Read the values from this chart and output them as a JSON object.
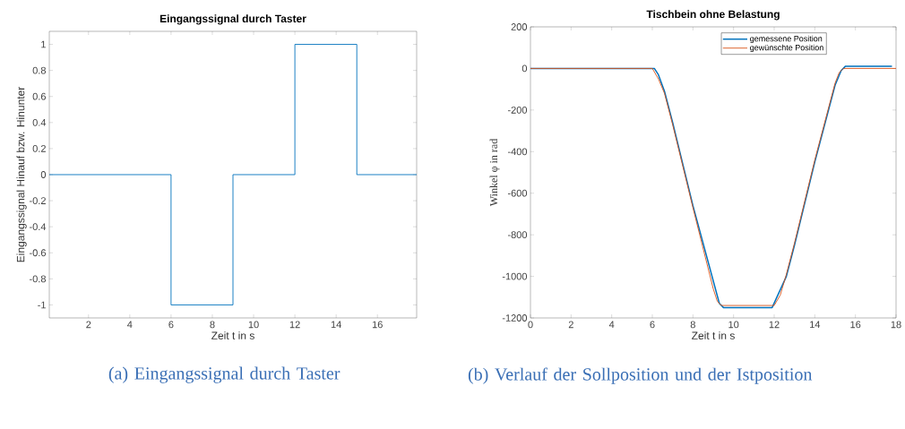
{
  "chart_data": [
    {
      "type": "step",
      "title": "Eingangssignal durch Taster",
      "xlabel": "Zeit t in s",
      "ylabel": "Eingangssignal Hinauf bzw. Hinunter",
      "x": [
        0.1,
        6,
        9,
        12,
        15,
        17.9
      ],
      "values": [
        0,
        -1,
        0,
        1,
        0,
        0
      ],
      "color": "#0072bd",
      "xlim": [
        0.1,
        17.9
      ],
      "ylim": [
        -1.1,
        1.1
      ],
      "xticks": [
        2,
        4,
        6,
        8,
        10,
        12,
        14,
        16
      ],
      "yticks": [
        -1,
        -0.8,
        -0.6,
        -0.4,
        -0.2,
        0,
        0.2,
        0.4,
        0.6,
        0.8,
        1
      ],
      "grid": false,
      "annotations": [
        "(a) Eingangssignal durch Taster"
      ]
    },
    {
      "type": "line",
      "title": "Tischbein ohne Belastung",
      "xlabel": "Zeit t in s",
      "ylabel": "Winkel φ in rad",
      "series": [
        {
          "name": "gemessene Position",
          "color": "#0072bd",
          "x": [
            0,
            6.1,
            6.3,
            6.6,
            7,
            8,
            9.3,
            9.5,
            11.9,
            12.6,
            13,
            14,
            15,
            15.3,
            15.5,
            17.8
          ],
          "values": [
            0,
            0,
            -30,
            -110,
            -260,
            -660,
            -1130,
            -1150,
            -1150,
            -1000,
            -850,
            -450,
            -80,
            -10,
            10,
            10
          ]
        },
        {
          "name": "gewünschte Position",
          "color": "#d95319",
          "x": [
            0,
            6,
            6.3,
            6.6,
            7,
            8,
            9,
            9.2,
            9.4,
            12,
            12.3,
            12.6,
            13,
            14,
            15,
            15.2,
            15.4,
            18
          ],
          "values": [
            0,
            0,
            -50,
            -120,
            -270,
            -670,
            -1060,
            -1120,
            -1140,
            -1140,
            -1090,
            -990,
            -840,
            -440,
            -70,
            -20,
            0,
            0
          ]
        }
      ],
      "xlim": [
        0,
        18
      ],
      "ylim": [
        -1200,
        200
      ],
      "xticks": [
        0,
        2,
        4,
        6,
        8,
        10,
        12,
        14,
        16,
        18
      ],
      "yticks": [
        -1200,
        -1000,
        -800,
        -600,
        -400,
        -200,
        0,
        200
      ],
      "grid": false,
      "legend": "top right",
      "annotations": [
        "(b) Verlauf der Sollposition und der Istposition"
      ]
    }
  ]
}
